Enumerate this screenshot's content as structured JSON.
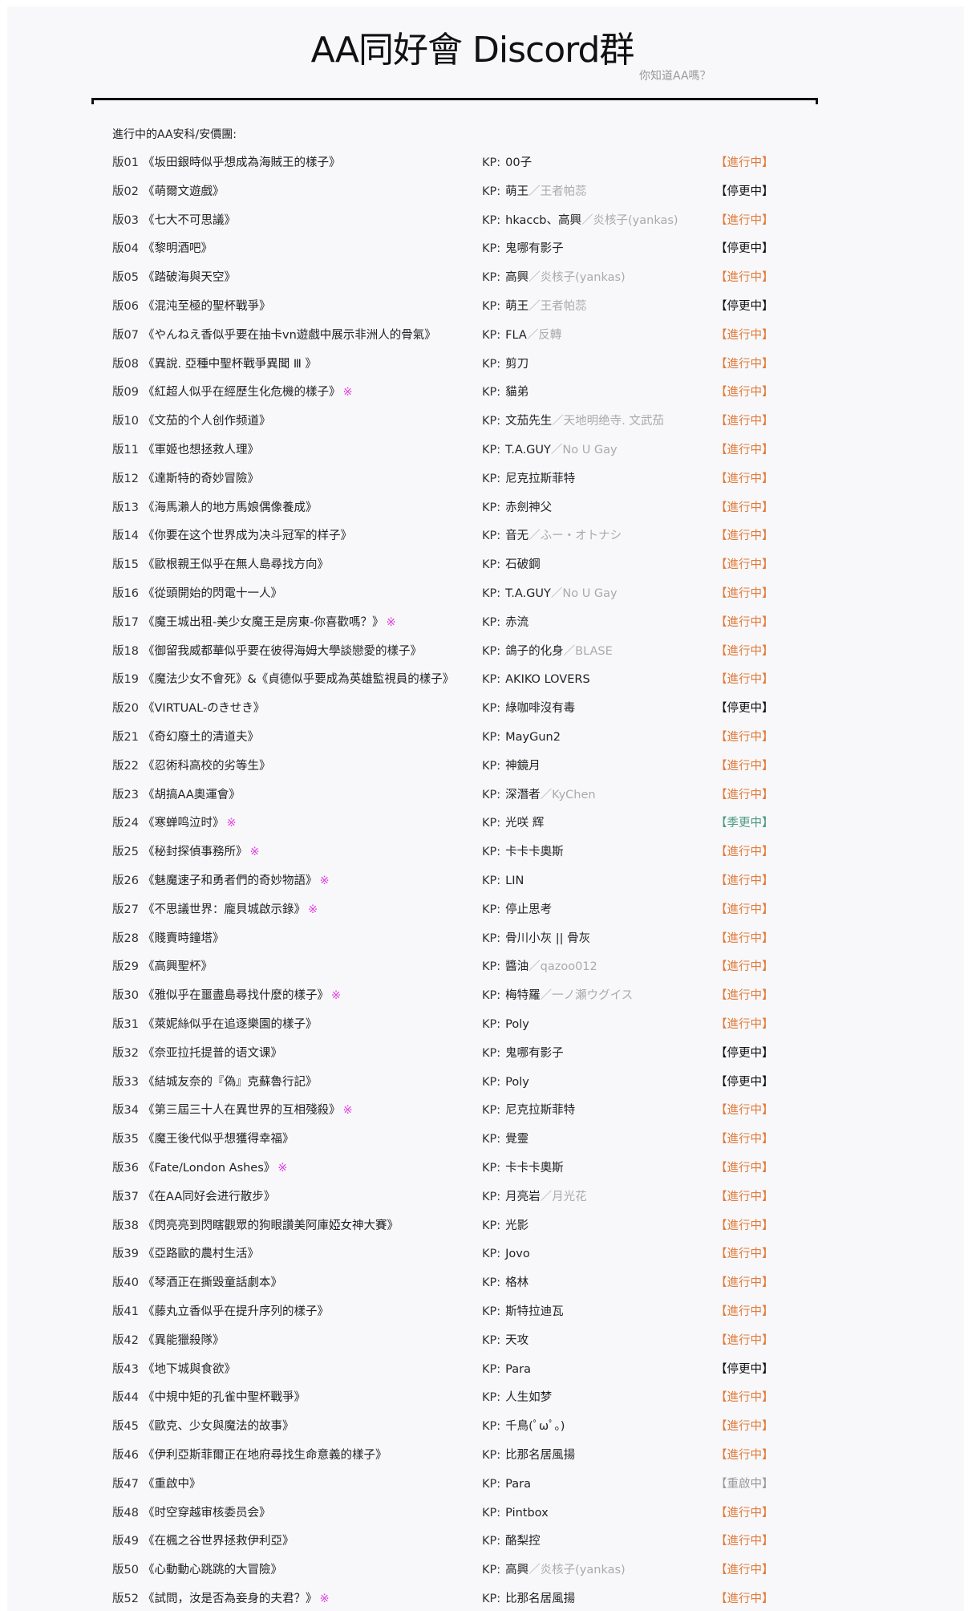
{
  "header": {
    "title": "AA同好會 Discord群",
    "subtitle": "你知道AA嗎？"
  },
  "section_title": "進行中的AA安科/安價團:",
  "kp_label": "KP:",
  "colors": {
    "running": "#e07a3a",
    "stopped": "#111111",
    "seasonal": "#4a9a80",
    "restarting": "#999999",
    "mark": "#e040e0"
  },
  "rows": [
    {
      "num": "版01",
      "title": "《坂田銀時似乎想成為海賊王的樣子》",
      "mark": "",
      "kp": "00子",
      "kp_alt": "",
      "status": "【進行中】",
      "state": "run"
    },
    {
      "num": "版02",
      "title": "《萌爾文遊戲》",
      "mark": "",
      "kp": "萌王",
      "kp_alt": "／王者帕蕊",
      "status": "【停更中】",
      "state": "stop"
    },
    {
      "num": "版03",
      "title": "《七大不可思議》",
      "mark": "",
      "kp": "hkaccb、高興",
      "kp_alt": "／炎核子(yankas)",
      "status": "【進行中】",
      "state": "run"
    },
    {
      "num": "版04",
      "title": "《黎明酒吧》",
      "mark": "",
      "kp": "鬼哪有影子",
      "kp_alt": "",
      "status": "【停更中】",
      "state": "stop"
    },
    {
      "num": "版05",
      "title": "《踏破海與天空》",
      "mark": "",
      "kp": "高興",
      "kp_alt": "／炎核子(yankas)",
      "status": "【進行中】",
      "state": "run"
    },
    {
      "num": "版06",
      "title": "《混沌至極的聖杯戰爭》",
      "mark": "",
      "kp": "萌王",
      "kp_alt": "／王者帕蕊",
      "status": "【停更中】",
      "state": "stop"
    },
    {
      "num": "版07",
      "title": "《やんねえ香似乎要在抽卡vn遊戲中展示非洲人的骨氣》",
      "mark": "",
      "kp": "FLA",
      "kp_alt": "／反轉",
      "status": "【進行中】",
      "state": "run"
    },
    {
      "num": "版08",
      "title": "《異說. 亞種中聖杯戰爭異聞 Ⅲ 》",
      "mark": "",
      "kp": "剪刀",
      "kp_alt": "",
      "status": "【進行中】",
      "state": "run"
    },
    {
      "num": "版09",
      "title": "《紅超人似乎在經歷生化危機的樣子》",
      "mark": "※",
      "kp": "貓弟",
      "kp_alt": "",
      "status": "【進行中】",
      "state": "run"
    },
    {
      "num": "版10",
      "title": "《文茄的个人创作频道》",
      "mark": "",
      "kp": "文茄先生",
      "kp_alt": "／天地明绝寺. 文武茄",
      "status": "【進行中】",
      "state": "run"
    },
    {
      "num": "版11",
      "title": "《軍姬也想拯救人理》",
      "mark": "",
      "kp": "T.A.GUY",
      "kp_alt": "／No U Gay",
      "status": "【進行中】",
      "state": "run"
    },
    {
      "num": "版12",
      "title": "《達斯特的奇妙冒險》",
      "mark": "",
      "kp": "尼克拉斯菲特",
      "kp_alt": "",
      "status": "【進行中】",
      "state": "run"
    },
    {
      "num": "版13",
      "title": "《海馬瀨人的地方馬娘偶像養成》",
      "mark": "",
      "kp": "赤劍神父",
      "kp_alt": "",
      "status": "【進行中】",
      "state": "run"
    },
    {
      "num": "版14",
      "title": "《你要在这个世界成为决斗冠军的样子》",
      "mark": "",
      "kp": "音无",
      "kp_alt": "／ふー・オトナシ",
      "status": "【進行中】",
      "state": "run"
    },
    {
      "num": "版15",
      "title": "《歐根親王似乎在無人島尋找方向》",
      "mark": "",
      "kp": "石破鋼",
      "kp_alt": "",
      "status": "【進行中】",
      "state": "run"
    },
    {
      "num": "版16",
      "title": "《從頭開始的閃電十一人》",
      "mark": "",
      "kp": "T.A.GUY",
      "kp_alt": "／No U Gay",
      "status": "【進行中】",
      "state": "run"
    },
    {
      "num": "版17",
      "title": "《魔王城出租-美少女魔王是房東-你喜歡嗎？》",
      "mark": "※",
      "kp": "赤流",
      "kp_alt": "",
      "status": "【進行中】",
      "state": "run"
    },
    {
      "num": "版18",
      "title": "《御留我威都華似乎要在彼得海姆大學談戀愛的樣子》",
      "mark": "",
      "kp": "鴿子的化身",
      "kp_alt": "／BLASE",
      "status": "【進行中】",
      "state": "run"
    },
    {
      "num": "版19",
      "title": "《魔法少女不會死》&《貞德似乎要成為英雄監視員的樣子》",
      "mark": "",
      "kp": "AKIKO LOVERS",
      "kp_alt": "",
      "status": "【進行中】",
      "state": "run"
    },
    {
      "num": "版20",
      "title": "《VIRTUAL-のきせき》",
      "mark": "",
      "kp": "綠咖啡沒有毒",
      "kp_alt": "",
      "status": "【停更中】",
      "state": "stop"
    },
    {
      "num": "版21",
      "title": "《奇幻廢土的清道夫》",
      "mark": "",
      "kp": "MayGun2",
      "kp_alt": "",
      "status": "【進行中】",
      "state": "run"
    },
    {
      "num": "版22",
      "title": "《忍術科高校的劣等生》",
      "mark": "",
      "kp": "神鏡月",
      "kp_alt": "",
      "status": "【進行中】",
      "state": "run"
    },
    {
      "num": "版23",
      "title": "《胡搞AA奧運會》",
      "mark": "",
      "kp": "深潛者",
      "kp_alt": "／KyChen",
      "status": "【進行中】",
      "state": "run"
    },
    {
      "num": "版24",
      "title": "《寒蝉鸣泣时》",
      "mark": "※",
      "kp": "光咲 辉",
      "kp_alt": "",
      "status": "【季更中】",
      "state": "season"
    },
    {
      "num": "版25",
      "title": "《秘封探偵事務所》",
      "mark": "※",
      "kp": "卡卡卡奧斯",
      "kp_alt": "",
      "status": "【進行中】",
      "state": "run"
    },
    {
      "num": "版26",
      "title": "《魅魔速子和勇者們的奇妙物語》",
      "mark": "※",
      "kp": "LIN",
      "kp_alt": "",
      "status": "【進行中】",
      "state": "run"
    },
    {
      "num": "版27",
      "title": "《不思議世界：龐貝城啟示錄》",
      "mark": "※",
      "kp": "停止思考",
      "kp_alt": "",
      "status": "【進行中】",
      "state": "run"
    },
    {
      "num": "版28",
      "title": "《賤賣時鐘塔》",
      "mark": "",
      "kp": "骨川小灰 || 骨灰",
      "kp_alt": "",
      "status": "【進行中】",
      "state": "run"
    },
    {
      "num": "版29",
      "title": "《高興聖杯》",
      "mark": "",
      "kp": "醬油",
      "kp_alt": "／qazoo012",
      "status": "【進行中】",
      "state": "run"
    },
    {
      "num": "版30",
      "title": "《雅似乎在噩盡島尋找什麼的樣子》",
      "mark": "※",
      "kp": "梅特羅",
      "kp_alt": "／一ノ瀬ウグイス",
      "status": "【進行中】",
      "state": "run"
    },
    {
      "num": "版31",
      "title": "《萊妮絲似乎在追逐樂園的樣子》",
      "mark": "",
      "kp": "Poly",
      "kp_alt": "",
      "status": "【進行中】",
      "state": "run"
    },
    {
      "num": "版32",
      "title": "《奈亚拉托提普的语文课》",
      "mark": "",
      "kp": "鬼哪有影子",
      "kp_alt": "",
      "status": "【停更中】",
      "state": "stop"
    },
    {
      "num": "版33",
      "title": "《結城友奈的『偽』克蘇魯行記》",
      "mark": "",
      "kp": "Poly",
      "kp_alt": "",
      "status": "【停更中】",
      "state": "stop"
    },
    {
      "num": "版34",
      "title": "《第三屆三十人在異世界的互相殘殺》",
      "mark": "※",
      "kp": "尼克拉斯菲特",
      "kp_alt": "",
      "status": "【進行中】",
      "state": "run"
    },
    {
      "num": "版35",
      "title": "《魔王後代似乎想獲得幸福》",
      "mark": "",
      "kp": "覺靈",
      "kp_alt": "",
      "status": "【進行中】",
      "state": "run"
    },
    {
      "num": "版36",
      "title": "《Fate/London Ashes》",
      "mark": "※",
      "kp": "卡卡卡奧斯",
      "kp_alt": "",
      "status": "【進行中】",
      "state": "run"
    },
    {
      "num": "版37",
      "title": "《在AA同好会进行散步》",
      "mark": "",
      "kp": "月亮岩",
      "kp_alt": "／月光花",
      "status": "【進行中】",
      "state": "run"
    },
    {
      "num": "版38",
      "title": "《閃亮亮到閃瞎觀眾的狗眼讚美阿庫婭女神大賽》",
      "mark": "",
      "kp": "光影",
      "kp_alt": "",
      "status": "【進行中】",
      "state": "run"
    },
    {
      "num": "版39",
      "title": "《亞路歐的農村生活》",
      "mark": "",
      "kp": "Jovo",
      "kp_alt": "",
      "status": "【進行中】",
      "state": "run"
    },
    {
      "num": "版40",
      "title": "《琴酒正在撕毀童話劇本》",
      "mark": "",
      "kp": "格林",
      "kp_alt": "",
      "status": "【進行中】",
      "state": "run"
    },
    {
      "num": "版41",
      "title": "《藤丸立香似乎在提升序列的樣子》",
      "mark": "",
      "kp": "斯特拉迪瓦",
      "kp_alt": "",
      "status": "【進行中】",
      "state": "run"
    },
    {
      "num": "版42",
      "title": "《異能獵殺隊》",
      "mark": "",
      "kp": "天攻",
      "kp_alt": "",
      "status": "【進行中】",
      "state": "run"
    },
    {
      "num": "版43",
      "title": "《地下城與食欲》",
      "mark": "",
      "kp": "Para",
      "kp_alt": "",
      "status": "【停更中】",
      "state": "stop"
    },
    {
      "num": "版44",
      "title": "《中規中矩的孔雀中聖杯戰爭》",
      "mark": "",
      "kp": "人生如梦",
      "kp_alt": "",
      "status": "【進行中】",
      "state": "run"
    },
    {
      "num": "版45",
      "title": "《歐克、少女與魔法的故事》",
      "mark": "",
      "kp": "千鳥(ﾟωﾟ。)",
      "kp_alt": "",
      "status": "【進行中】",
      "state": "run"
    },
    {
      "num": "版46",
      "title": "《伊利亞斯菲爾正在地府尋找生命意義的樣子》",
      "mark": "",
      "kp": "比那名居風揚",
      "kp_alt": "",
      "status": "【進行中】",
      "state": "run"
    },
    {
      "num": "版47",
      "title": "《重啟中》",
      "mark": "",
      "kp": "Para",
      "kp_alt": "",
      "status": "【重啟中】",
      "state": "restart"
    },
    {
      "num": "版48",
      "title": "《时空穿越审核委员会》",
      "mark": "",
      "kp": "Pintbox",
      "kp_alt": "",
      "status": "【進行中】",
      "state": "run"
    },
    {
      "num": "版49",
      "title": "《在楓之谷世界拯救伊利亞》",
      "mark": "",
      "kp": "酪梨控",
      "kp_alt": "",
      "status": "【進行中】",
      "state": "run"
    },
    {
      "num": "版50",
      "title": "《心動動心跳跳的大冒險》",
      "mark": "",
      "kp": "高興",
      "kp_alt": "／炎核子(yankas)",
      "status": "【進行中】",
      "state": "run"
    },
    {
      "num": "版52",
      "title": "《試問，汝是否為妾身的夫君？》",
      "mark": "※",
      "kp": "比那名居風揚",
      "kp_alt": "",
      "status": "【進行中】",
      "state": "run"
    }
  ]
}
